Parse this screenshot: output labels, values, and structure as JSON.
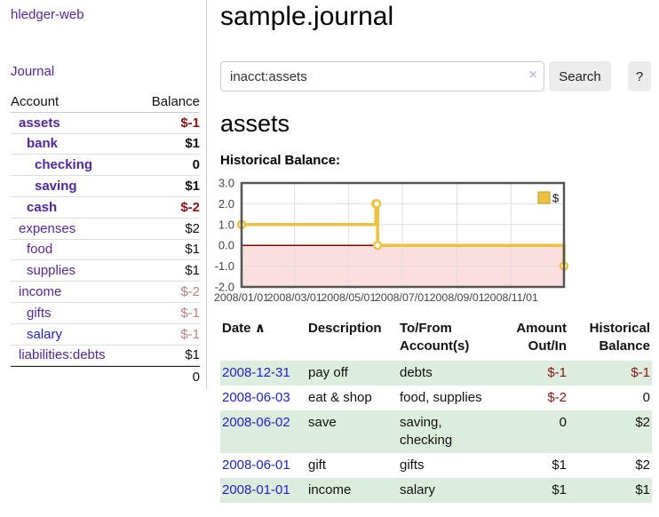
{
  "app": {
    "title": "hledger-web"
  },
  "sidebar": {
    "journal_link": "Journal",
    "columns": {
      "account": "Account",
      "balance": "Balance"
    },
    "accounts": [
      {
        "name": "assets",
        "balance": "$-1"
      },
      {
        "name": "bank",
        "balance": "$1"
      },
      {
        "name": "checking",
        "balance": "0"
      },
      {
        "name": "saving",
        "balance": "$1"
      },
      {
        "name": "cash",
        "balance": "$-2"
      },
      {
        "name": "expenses",
        "balance": "$2"
      },
      {
        "name": "food",
        "balance": "$1"
      },
      {
        "name": "supplies",
        "balance": "$1"
      },
      {
        "name": "income",
        "balance": "$-2"
      },
      {
        "name": "gifts",
        "balance": "$-1"
      },
      {
        "name": "salary",
        "balance": "$-1"
      },
      {
        "name": "liabilities:debts",
        "balance": "$1"
      }
    ],
    "total": "0"
  },
  "header": {
    "title": "sample.journal"
  },
  "search": {
    "value": "inacct:assets",
    "clear_icon": "×",
    "button_label": "Search",
    "help_label": "?"
  },
  "account_page": {
    "heading": "assets"
  },
  "chart_data": {
    "type": "line",
    "step": true,
    "title": "Historical Balance:",
    "legend": [
      {
        "label": "$",
        "color": "#edc240"
      }
    ],
    "series": [
      {
        "name": "$",
        "points": [
          {
            "date": "2008-01-01",
            "value": 1
          },
          {
            "date": "2008-06-01",
            "value": 2
          },
          {
            "date": "2008-06-02",
            "value": 2
          },
          {
            "date": "2008-06-03",
            "value": 0
          },
          {
            "date": "2008-12-31",
            "value": -1
          }
        ]
      }
    ],
    "xlim": [
      "2008-01-01",
      "2008-12-31"
    ],
    "ylim": [
      -2,
      3
    ],
    "y_ticks": [
      {
        "value": 3,
        "label": "3.0"
      },
      {
        "value": 2,
        "label": "2.0"
      },
      {
        "value": 1,
        "label": "1.0"
      },
      {
        "value": 0,
        "label": "0.0"
      },
      {
        "value": -1,
        "label": "-1.0"
      },
      {
        "value": -2,
        "label": "-2.0"
      }
    ],
    "x_ticks": [
      {
        "date": "2008-01-01",
        "label": "2008/01/01"
      },
      {
        "date": "2008-03-01",
        "label": "2008/03/01"
      },
      {
        "date": "2008-05-01",
        "label": "2008/05/01"
      },
      {
        "date": "2008-07-01",
        "label": "2008/07/01"
      },
      {
        "date": "2008-09-01",
        "label": "2008/09/01"
      },
      {
        "date": "2008-11-01",
        "label": "2008/11/01"
      }
    ],
    "negative_region_shaded": true,
    "grid": true,
    "legend_position": "top-right"
  },
  "register": {
    "columns": {
      "date": "Date",
      "sort_indicator": "∧",
      "description": "Description",
      "tofrom": [
        "To/From",
        "Account(s)"
      ],
      "amount": [
        "Amount",
        "Out/In"
      ],
      "balance": [
        "Historical",
        "Balance"
      ]
    },
    "rows": [
      {
        "date": "2008-12-31",
        "description": "pay off",
        "accounts": "debts",
        "amount": "$-1",
        "balance": "$-1"
      },
      {
        "date": "2008-06-03",
        "description": "eat & shop",
        "accounts": "food, supplies",
        "amount": "$-2",
        "balance": "0"
      },
      {
        "date": "2008-06-02",
        "description": "save",
        "accounts": "saving, checking",
        "amount": "0",
        "balance": "$2"
      },
      {
        "date": "2008-06-01",
        "description": "gift",
        "accounts": "gifts",
        "amount": "$1",
        "balance": "$2"
      },
      {
        "date": "2008-01-01",
        "description": "income",
        "accounts": "salary",
        "amount": "$1",
        "balance": "$1"
      }
    ]
  },
  "colors": {
    "purple": "#53279c",
    "blue": "#2222cc",
    "neg_dark": "#8b1212",
    "neg_rose": "#bf8181",
    "row_green": "#dcecdd",
    "gold": "#edc240",
    "chart_pink": "#fbdede",
    "zero_red": "#8b0000",
    "chart_border": "#545454",
    "grid": "#dedede"
  }
}
